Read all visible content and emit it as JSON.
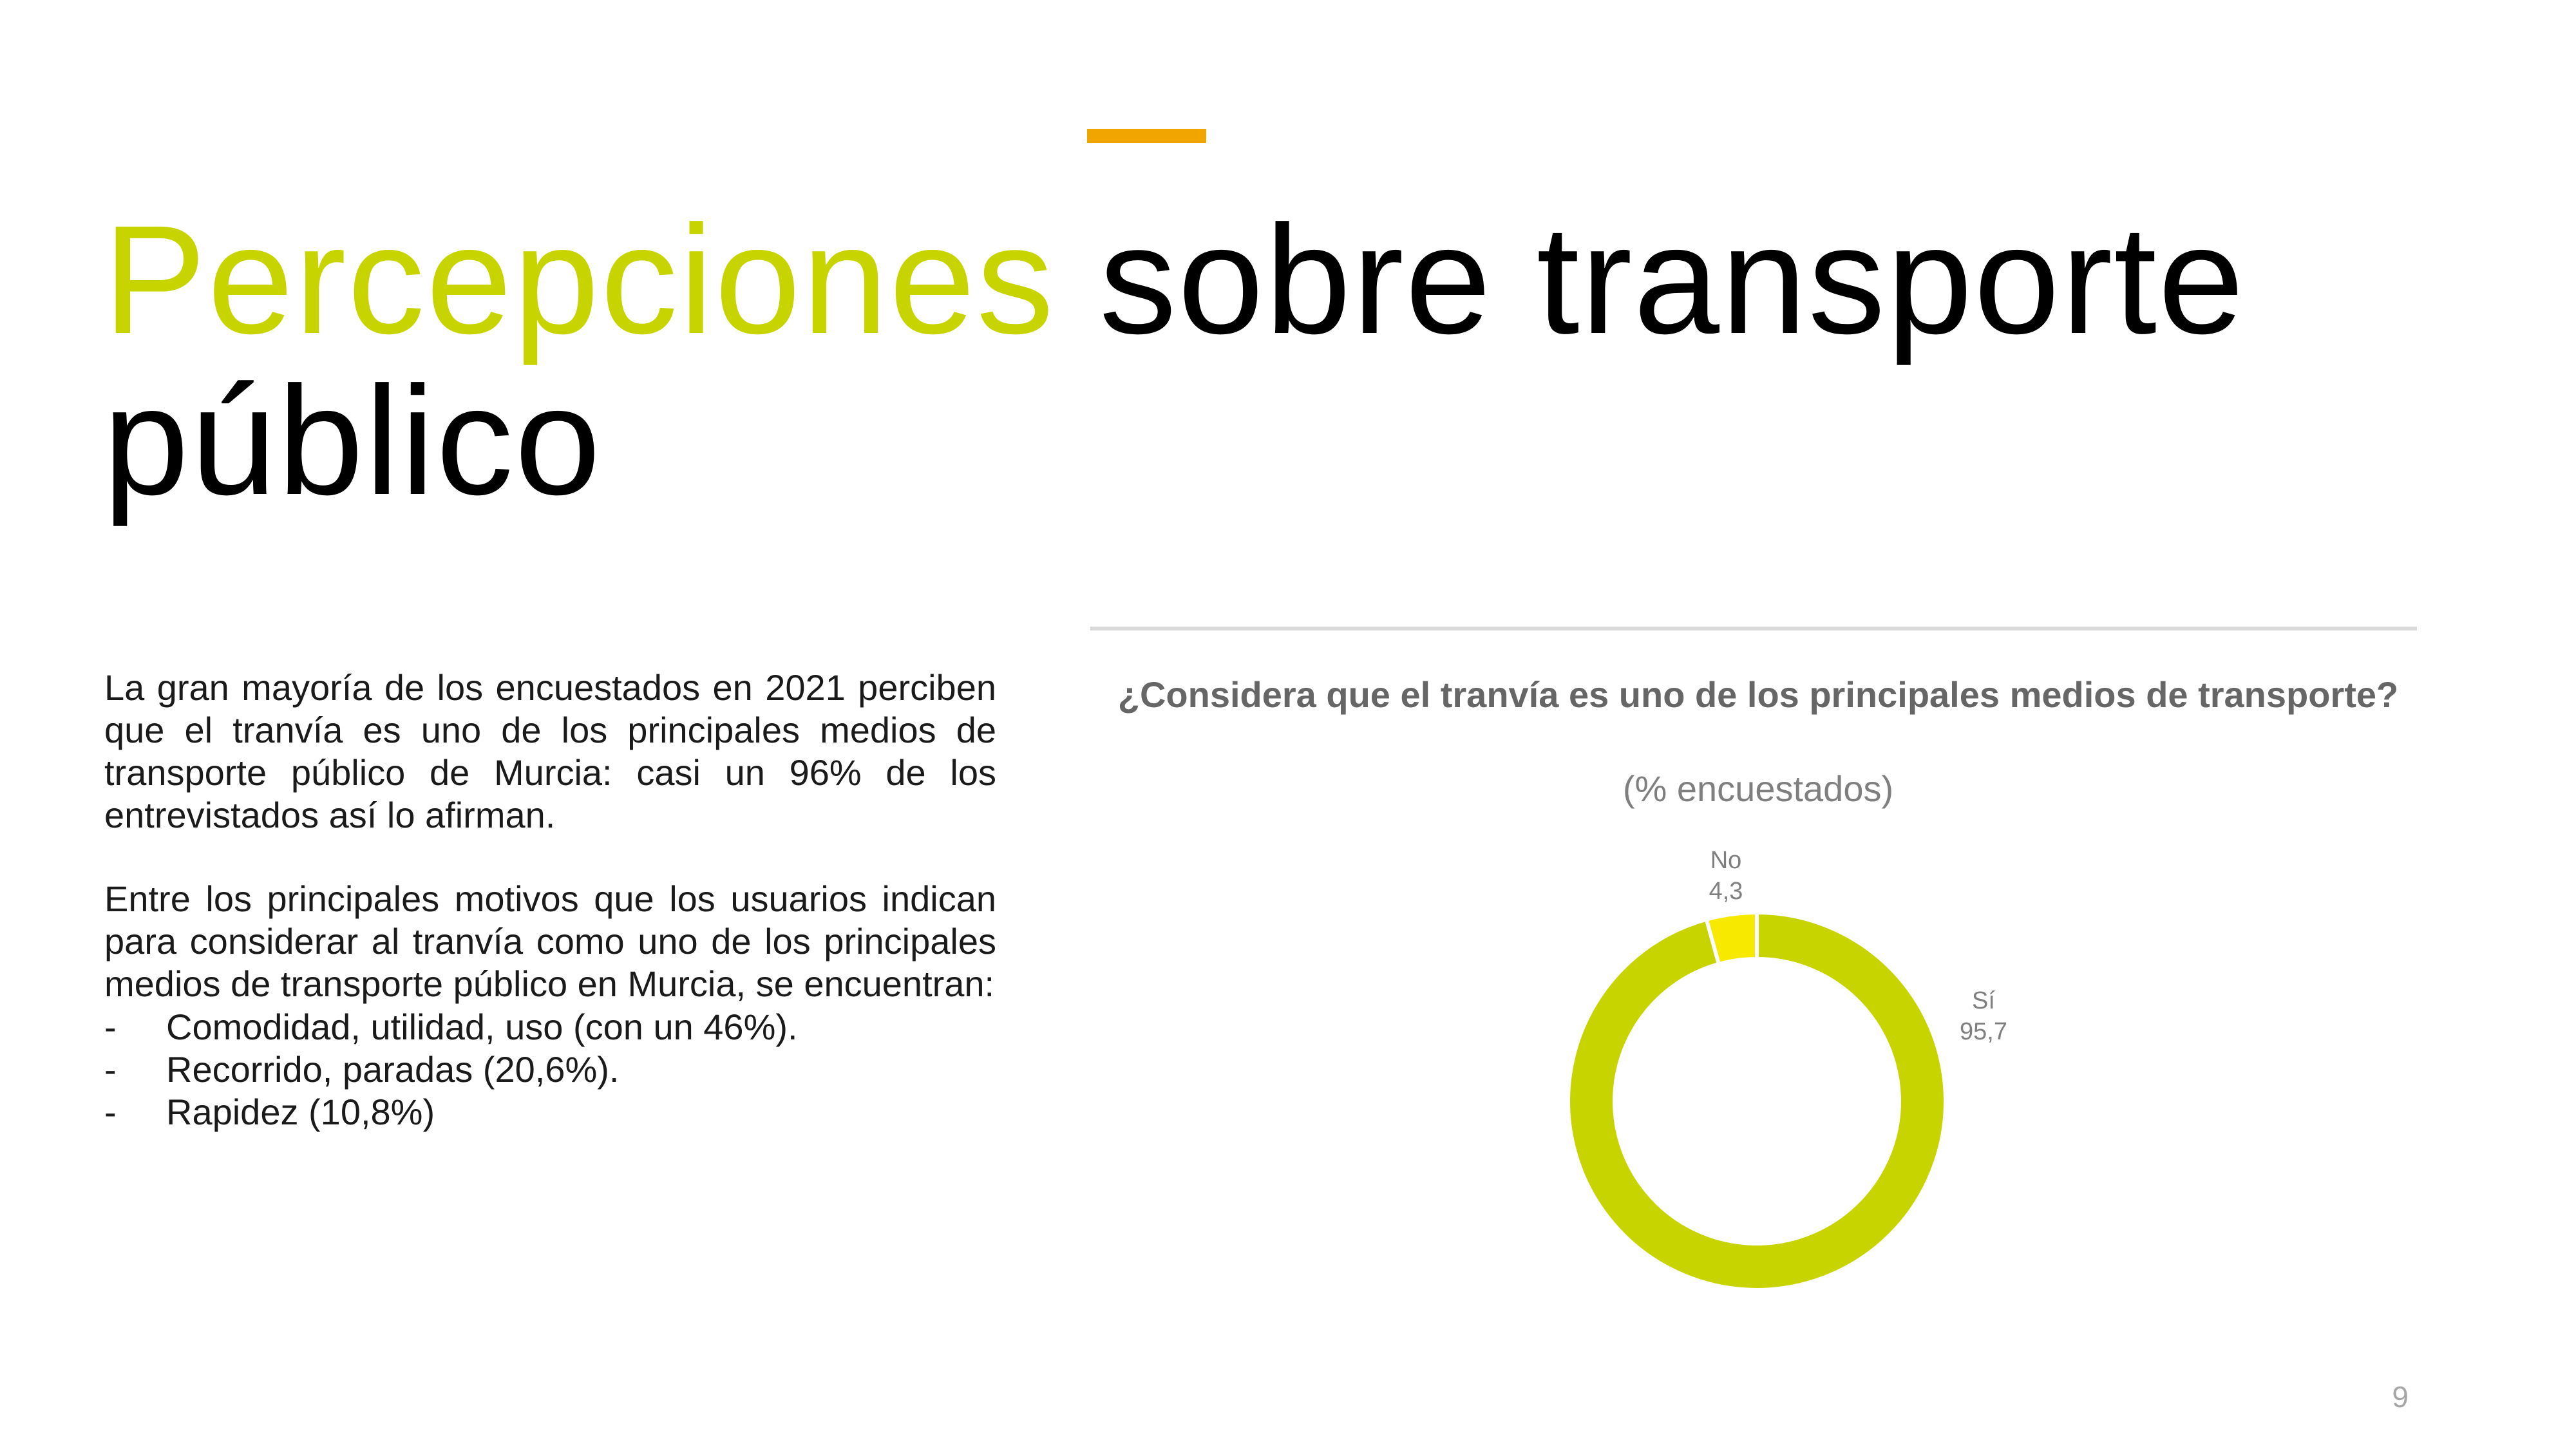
{
  "slide": {
    "title_highlight": "Percepciones",
    "title_rest": " sobre transporte público",
    "page_number": "9",
    "accent_color": "#f0a500",
    "highlight_color": "#c8d400"
  },
  "body": {
    "paragraph_1": "La gran mayoría de los encuestados en 2021 perciben que el tranvía es uno de los principales medios de transporte público de Murcia: casi un 96% de los entrevistados así lo afirman.",
    "paragraph_2": "Entre los principales motivos que los usuarios indican para considerar al tranvía como uno de los principales medios de transporte público en Murcia, se encuentran:",
    "bullets": [
      {
        "dash": "-",
        "text": "Comodidad, utilidad, uso (con un 46%)."
      },
      {
        "dash": "-",
        "text": "Recorrido, paradas (20,6%)."
      },
      {
        "dash": "-",
        "text": "Rapidez (10,8%)"
      }
    ]
  },
  "chart_data": {
    "type": "pie",
    "subtype": "donut",
    "title": "¿Considera que el tranvía es uno de los principales medios de transporte?",
    "subtitle": "(% encuestados)",
    "slices": [
      {
        "label": "Sí",
        "value": 95.7,
        "value_label": "95,7",
        "color": "#c8d400"
      },
      {
        "label": "No",
        "value": 4.3,
        "value_label": "4,3",
        "color": "#f7ea00"
      }
    ]
  }
}
